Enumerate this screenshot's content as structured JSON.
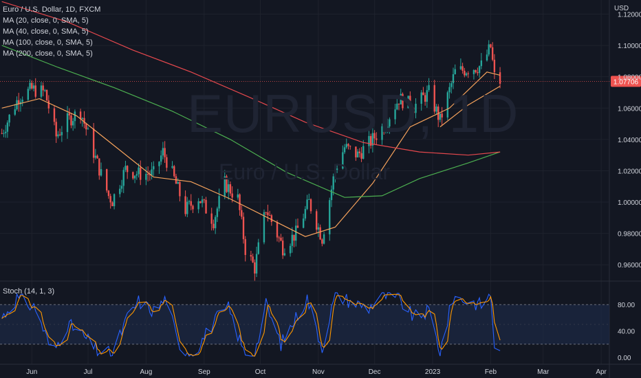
{
  "header": {
    "title": "Euro / U.S. Dollar, 1D, FXCM",
    "indicators": [
      "MA (20, close, 0, SMA, 5)",
      "MA (40, close, 0, SMA, 5)",
      "MA (100, close, 0, SMA, 5)",
      "MA (200, close, 0, SMA, 5)"
    ],
    "stoch_label": "Stoch (14, 1, 3)"
  },
  "watermark": {
    "symbol": "EURUSD, 1D",
    "description": "Euro / U.S. Dollar"
  },
  "colors": {
    "background": "#131722",
    "up": "#26a69a",
    "down": "#ef5350",
    "ma20": "#f7a35c",
    "ma200": "#e5484d",
    "ma100": "#4caf50",
    "stoch_k": "#2962ff",
    "stoch_d": "#ff9800",
    "price_line": "#ef5350",
    "band_fill": "#1c2a44"
  },
  "chart_data": {
    "type": "candlestick",
    "symbol": "EURUSD",
    "price_axis": {
      "unit": "USD",
      "range": [
        0.95,
        1.129
      ],
      "ticks": [
        "1.12000",
        "1.10000",
        "1.08000",
        "1.06000",
        "1.04000",
        "1.02000",
        "1.00000",
        "0.98000",
        "0.96000"
      ],
      "tick_values": [
        1.12,
        1.1,
        1.08,
        1.06,
        1.04,
        1.02,
        1.0,
        0.98,
        0.96
      ]
    },
    "last_price": {
      "label": "1.07706",
      "value": 1.07706
    },
    "time_axis": {
      "range": [
        "2022-05-15",
        "2023-04-05"
      ],
      "labels": [
        "Jun",
        "Jul",
        "Aug",
        "Sep",
        "Oct",
        "Nov",
        "Dec",
        "2023",
        "Feb",
        "Mar",
        "Apr"
      ],
      "label_dates": [
        "2022-06-01",
        "2022-07-01",
        "2022-08-01",
        "2022-09-01",
        "2022-10-01",
        "2022-11-01",
        "2022-12-01",
        "2023-01-01",
        "2023-02-01",
        "2023-03-01",
        "2023-04-01"
      ]
    },
    "price_path": [
      [
        "2022-05-16",
        1.044
      ],
      [
        "2022-05-25",
        1.067
      ],
      [
        "2022-06-01",
        1.072
      ],
      [
        "2022-06-08",
        1.07
      ],
      [
        "2022-06-14",
        1.042
      ],
      [
        "2022-06-20",
        1.052
      ],
      [
        "2022-06-27",
        1.058
      ],
      [
        "2022-07-05",
        1.028
      ],
      [
        "2022-07-12",
        1.004
      ],
      [
        "2022-07-14",
        1.001
      ],
      [
        "2022-07-21",
        1.021
      ],
      [
        "2022-07-28",
        1.018
      ],
      [
        "2022-08-05",
        1.018
      ],
      [
        "2022-08-10",
        1.032
      ],
      [
        "2022-08-15",
        1.018
      ],
      [
        "2022-08-22",
        0.995
      ],
      [
        "2022-08-29",
        1.003
      ],
      [
        "2022-09-06",
        0.988
      ],
      [
        "2022-09-12",
        1.012
      ],
      [
        "2022-09-19",
        1.002
      ],
      [
        "2022-09-23",
        0.97
      ],
      [
        "2022-09-28",
        0.958
      ],
      [
        "2022-10-04",
        0.996
      ],
      [
        "2022-10-13",
        0.971
      ],
      [
        "2022-10-20",
        0.98
      ],
      [
        "2022-10-27",
        1.0
      ],
      [
        "2022-11-03",
        0.977
      ],
      [
        "2022-11-10",
        1.021
      ],
      [
        "2022-11-15",
        1.035
      ],
      [
        "2022-11-22",
        1.03
      ],
      [
        "2022-11-30",
        1.04
      ],
      [
        "2022-12-06",
        1.049
      ],
      [
        "2022-12-14",
        1.066
      ],
      [
        "2022-12-22",
        1.061
      ],
      [
        "2022-12-30",
        1.07
      ],
      [
        "2023-01-05",
        1.052
      ],
      [
        "2023-01-13",
        1.083
      ],
      [
        "2023-01-20",
        1.085
      ],
      [
        "2023-01-27",
        1.087
      ],
      [
        "2023-02-01",
        1.099
      ],
      [
        "2023-02-03",
        1.08
      ],
      [
        "2023-02-06",
        1.077
      ]
    ],
    "ma_series": [
      {
        "name": "MA (20, close, 0, SMA, 5)",
        "color_key": "ma20",
        "points": [
          [
            "2022-05-16",
            1.06
          ],
          [
            "2022-06-05",
            1.066
          ],
          [
            "2022-06-25",
            1.055
          ],
          [
            "2022-07-15",
            1.036
          ],
          [
            "2022-08-05",
            1.016
          ],
          [
            "2022-08-25",
            1.013
          ],
          [
            "2022-09-15",
            1.002
          ],
          [
            "2022-10-05",
            0.99
          ],
          [
            "2022-10-25",
            0.978
          ],
          [
            "2022-11-10",
            0.984
          ],
          [
            "2022-11-30",
            1.012
          ],
          [
            "2022-12-20",
            1.048
          ],
          [
            "2023-01-10",
            1.06
          ],
          [
            "2023-01-30",
            1.083
          ],
          [
            "2023-02-06",
            1.081
          ]
        ]
      },
      {
        "name": "MA (40, close, 0, SMA, 5)",
        "color_key": "ma20",
        "points": [
          [
            "2023-01-05",
            1.048
          ],
          [
            "2023-01-20",
            1.062
          ],
          [
            "2023-02-06",
            1.074
          ]
        ]
      },
      {
        "name": "MA (100, close, 0, SMA, 5)",
        "color_key": "ma100",
        "points": [
          [
            "2022-05-16",
            1.1
          ],
          [
            "2022-06-15",
            1.086
          ],
          [
            "2022-07-15",
            1.073
          ],
          [
            "2022-08-15",
            1.058
          ],
          [
            "2022-09-15",
            1.04
          ],
          [
            "2022-10-15",
            1.019
          ],
          [
            "2022-11-15",
            1.003
          ],
          [
            "2022-12-05",
            1.004
          ],
          [
            "2022-12-25",
            1.015
          ],
          [
            "2023-01-20",
            1.025
          ],
          [
            "2023-02-06",
            1.032
          ]
        ]
      },
      {
        "name": "MA (200, close, 0, SMA, 5)",
        "color_key": "ma200",
        "points": [
          [
            "2022-05-16",
            1.128
          ],
          [
            "2022-06-20",
            1.115
          ],
          [
            "2022-07-25",
            1.097
          ],
          [
            "2022-08-25",
            1.083
          ],
          [
            "2022-09-25",
            1.067
          ],
          [
            "2022-10-25",
            1.051
          ],
          [
            "2022-11-25",
            1.038
          ],
          [
            "2022-12-25",
            1.032
          ],
          [
            "2023-01-20",
            1.03
          ],
          [
            "2023-02-06",
            1.032
          ]
        ]
      }
    ],
    "stochastic": {
      "label": "Stoch (14, 1, 3)",
      "range": [
        0,
        100
      ],
      "ticks": [
        "80.00",
        "40.00",
        "0.00"
      ],
      "tick_values": [
        80,
        40,
        0
      ],
      "band": [
        20,
        80
      ],
      "midline": 50,
      "k_path": [
        [
          "2022-05-16",
          60
        ],
        [
          "2022-05-24",
          90
        ],
        [
          "2022-06-03",
          75
        ],
        [
          "2022-06-12",
          5
        ],
        [
          "2022-06-20",
          50
        ],
        [
          "2022-06-26",
          40
        ],
        [
          "2022-07-06",
          10
        ],
        [
          "2022-07-14",
          5
        ],
        [
          "2022-07-22",
          60
        ],
        [
          "2022-07-28",
          85
        ],
        [
          "2022-08-05",
          70
        ],
        [
          "2022-08-12",
          90
        ],
        [
          "2022-08-18",
          20
        ],
        [
          "2022-08-26",
          5
        ],
        [
          "2022-09-03",
          40
        ],
        [
          "2022-09-08",
          60
        ],
        [
          "2022-09-14",
          75
        ],
        [
          "2022-09-22",
          10
        ],
        [
          "2022-09-28",
          5
        ],
        [
          "2022-10-04",
          80
        ],
        [
          "2022-10-12",
          20
        ],
        [
          "2022-10-20",
          60
        ],
        [
          "2022-10-26",
          90
        ],
        [
          "2022-11-03",
          15
        ],
        [
          "2022-11-10",
          95
        ],
        [
          "2022-11-18",
          85
        ],
        [
          "2022-11-28",
          75
        ],
        [
          "2022-12-05",
          95
        ],
        [
          "2022-12-14",
          88
        ],
        [
          "2022-12-22",
          60
        ],
        [
          "2022-12-30",
          70
        ],
        [
          "2023-01-05",
          8
        ],
        [
          "2023-01-12",
          92
        ],
        [
          "2023-01-20",
          85
        ],
        [
          "2023-01-27",
          80
        ],
        [
          "2023-02-01",
          95
        ],
        [
          "2023-02-03",
          20
        ],
        [
          "2023-02-06",
          4
        ]
      ]
    }
  }
}
